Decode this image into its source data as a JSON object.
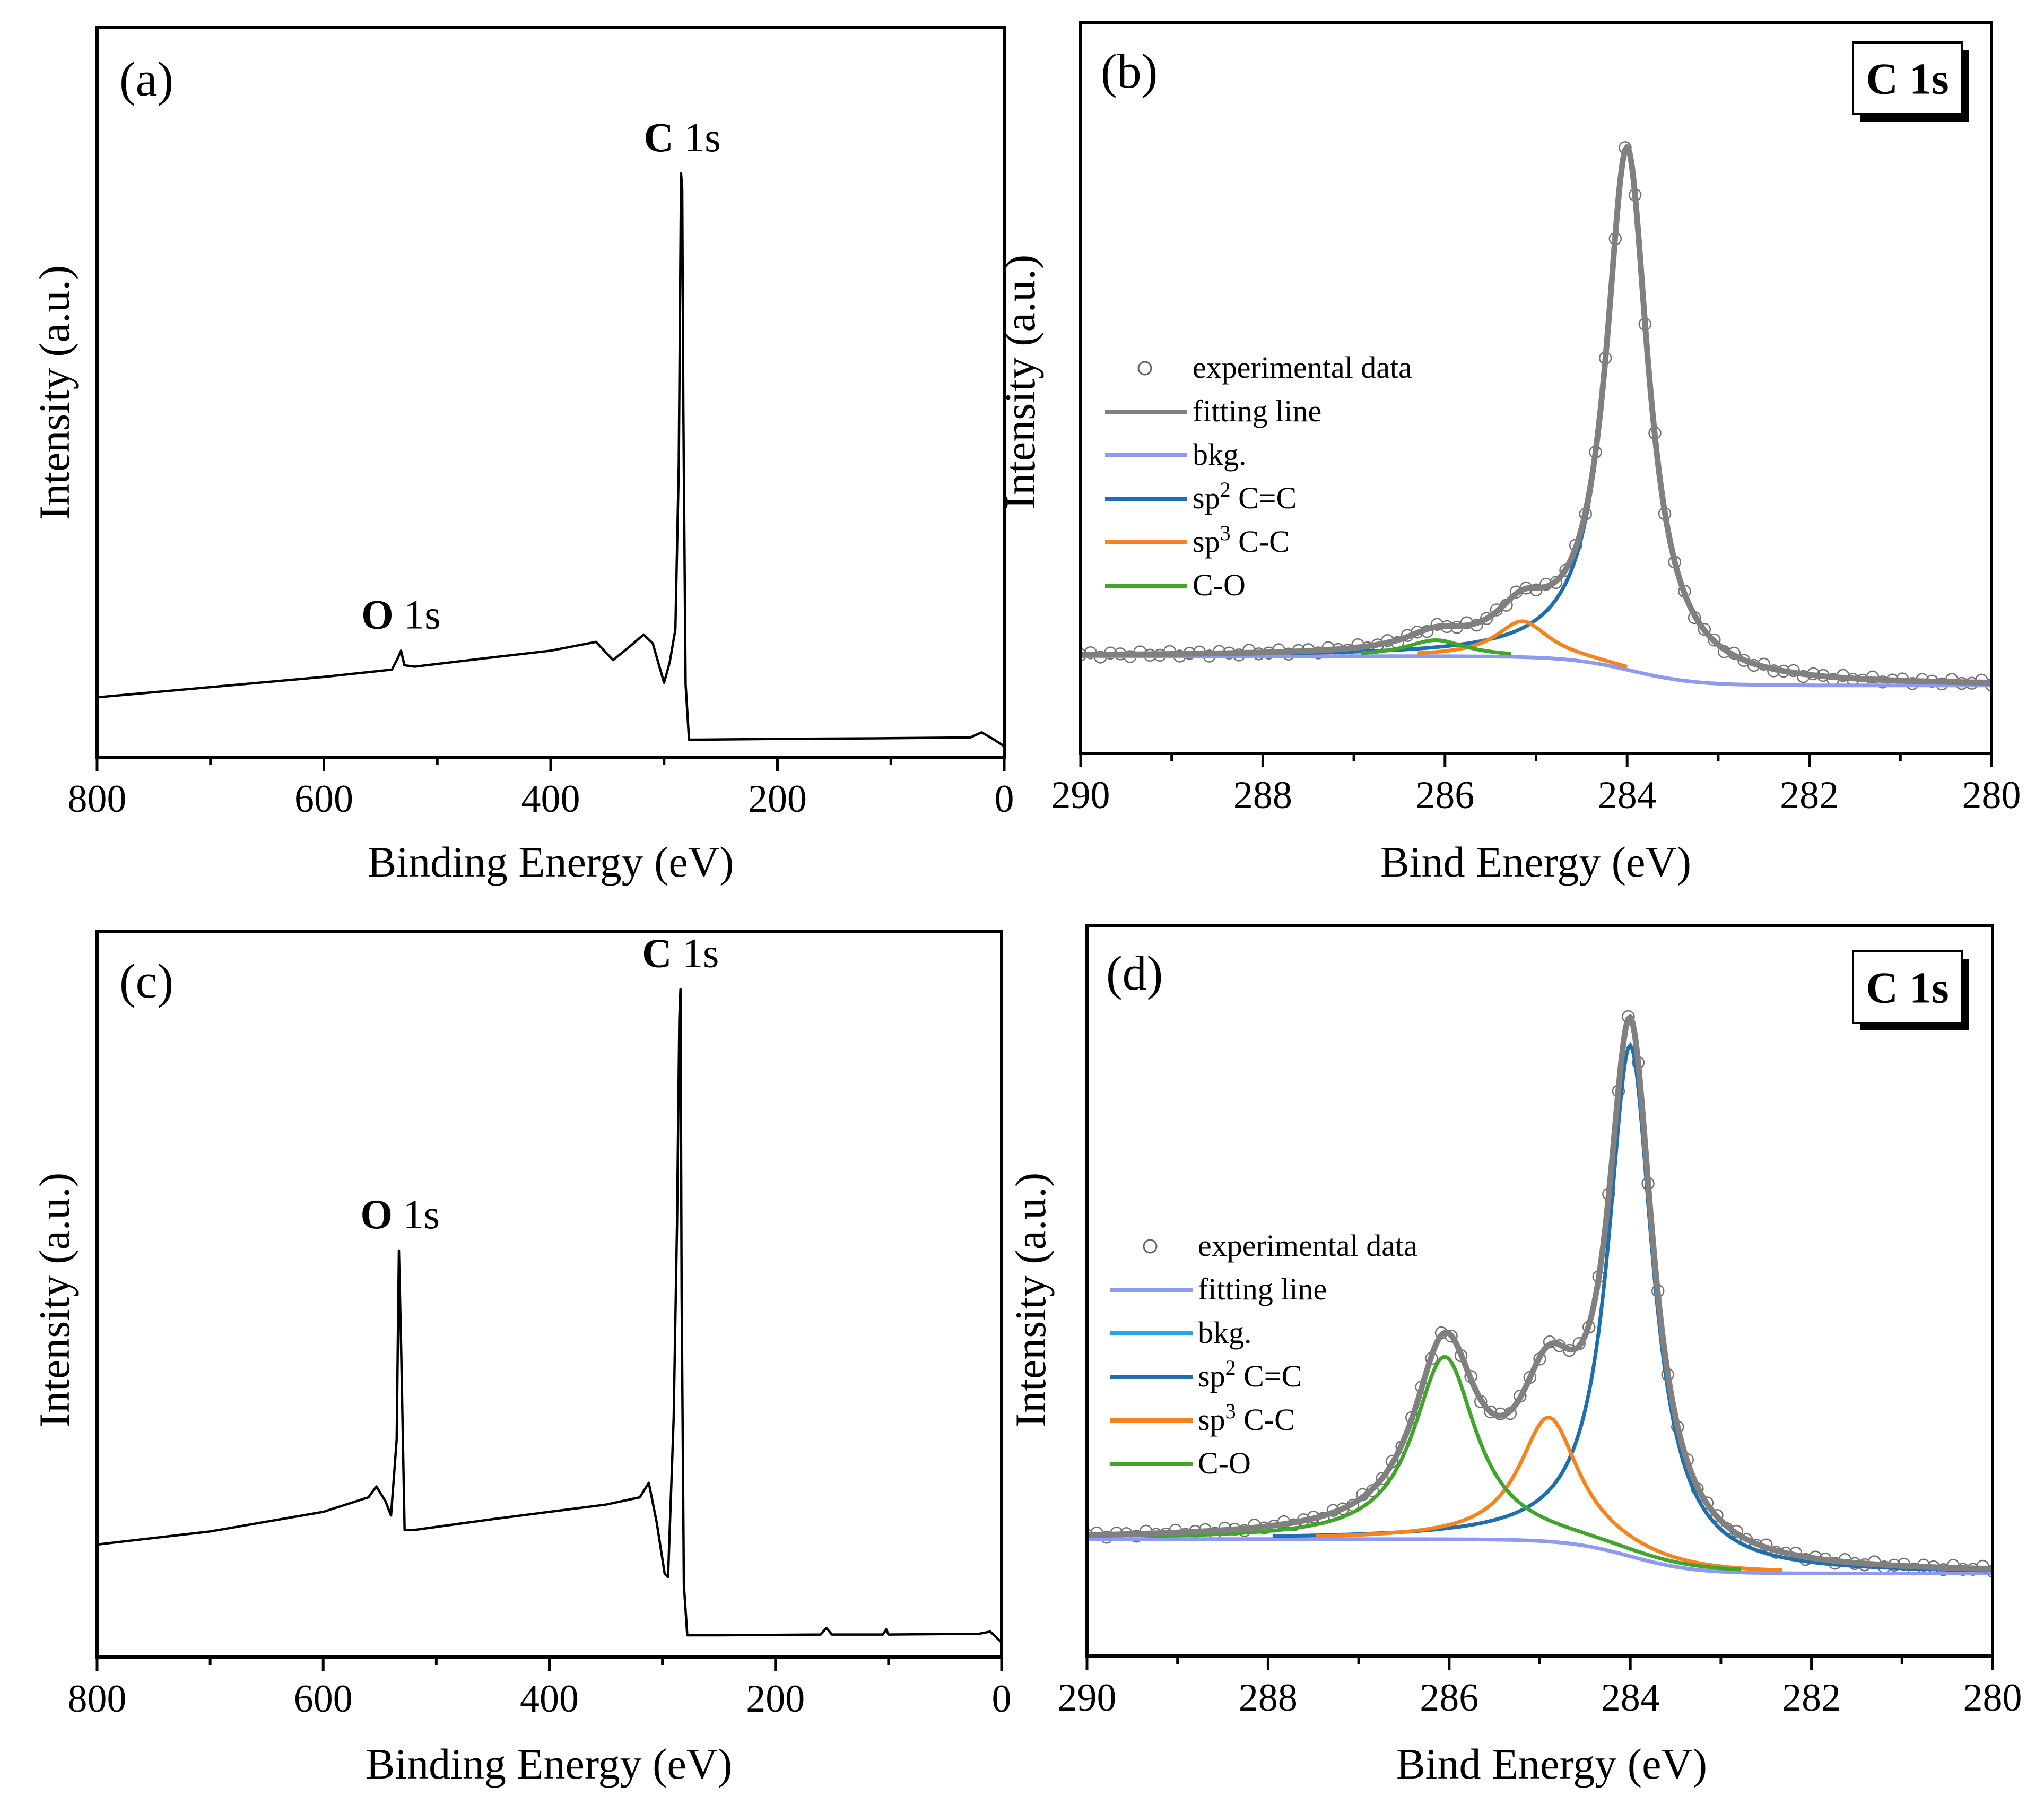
{
  "figure": {
    "panels": [
      "(a)",
      "(b)",
      "(c)",
      "(d)"
    ]
  },
  "chart_data": [
    {
      "id": "a",
      "type": "line",
      "panel_label": "(a)",
      "xlabel": "Binding Energy (eV)",
      "ylabel": "Intensity (a.u.)",
      "xlim": [
        800,
        0
      ],
      "ylim": [
        0,
        100
      ],
      "x_ticks": [
        "800",
        "600",
        "400",
        "200",
        "0"
      ],
      "annotations": [
        {
          "bold": "O",
          "rest": " 1s",
          "x": 532
        },
        {
          "bold": "C",
          "rest": " 1s",
          "x": 284
        }
      ],
      "series": [
        {
          "name": "survey",
          "color": "#000000",
          "x": [
            800,
            700,
            600,
            540,
            535,
            532,
            529,
            520,
            450,
            400,
            360,
            345,
            330,
            318,
            310,
            300,
            295,
            290,
            287,
            285,
            284,
            283,
            281,
            278,
            270,
            200,
            100,
            30,
            20,
            10,
            0
          ],
          "y": [
            8.2,
            9.6,
            11.0,
            12.0,
            13.5,
            14.6,
            12.6,
            12.4,
            13.7,
            14.6,
            15.8,
            13.3,
            15.2,
            16.8,
            15.6,
            10.2,
            13.0,
            17.5,
            40.0,
            80.0,
            78.0,
            48.0,
            10.0,
            2.4,
            2.4,
            2.5,
            2.6,
            2.7,
            3.4,
            2.5,
            1.5
          ]
        }
      ]
    },
    {
      "id": "b",
      "type": "line",
      "panel_label": "(b)",
      "badge": "C 1s",
      "xlabel": "Bind Energy (eV)",
      "ylabel": "Intensity (a.u.)",
      "xlim": [
        290,
        280
      ],
      "ylim": [
        0,
        100
      ],
      "x_ticks": [
        "290",
        "288",
        "286",
        "284",
        "282",
        "280"
      ],
      "legend": [
        {
          "label": "experimental data",
          "kind": "marker",
          "color": "#606060"
        },
        {
          "label": "fitting line",
          "color": "#808080"
        },
        {
          "label": "bkg.",
          "color": "#8c9af0"
        },
        {
          "label_main": "sp",
          "label_sup": "2",
          "label_rest": " C=C",
          "label": "sp2 C=C",
          "color": "#1f6fb0"
        },
        {
          "label_main": "sp",
          "label_sup": "3",
          "label_rest": " C-C",
          "label": "sp3 C-C",
          "color": "#f5841f"
        },
        {
          "label": "C-O",
          "color": "#3fa62a"
        }
      ],
      "peaks": [
        {
          "name": "sp2 C=C",
          "center": 284.0,
          "height": 71,
          "width": 0.28
        },
        {
          "name": "sp3 C-C",
          "center": 285.15,
          "height": 4.9,
          "width": 0.35
        },
        {
          "name": "C-O",
          "center": 286.1,
          "height": 2.2,
          "width": 0.4
        }
      ],
      "background": {
        "left": 13.3,
        "right": 9.3,
        "step_center": 283.95,
        "step_width": 0.35
      }
    },
    {
      "id": "c",
      "type": "line",
      "panel_label": "(c)",
      "xlabel": "Binding Energy (eV)",
      "ylabel": "Intensity (a.u.)",
      "xlim": [
        800,
        0
      ],
      "ylim": [
        0,
        100
      ],
      "x_ticks": [
        "800",
        "600",
        "400",
        "200",
        "0"
      ],
      "annotations": [
        {
          "bold": "O",
          "rest": " 1s",
          "x": 532
        },
        {
          "bold": "C",
          "rest": " 1s",
          "x": 284
        }
      ],
      "series": [
        {
          "name": "survey",
          "color": "#000000",
          "x": [
            800,
            700,
            600,
            560,
            553,
            545,
            540,
            535,
            533,
            531,
            528,
            520,
            450,
            400,
            350,
            320,
            312,
            305,
            298,
            295,
            290,
            287,
            285,
            284,
            283,
            281,
            278,
            250,
            160,
            155,
            150,
            105,
            102,
            100,
            20,
            10,
            0
          ],
          "y": [
            15.5,
            17.3,
            20.0,
            22.0,
            23.5,
            21.5,
            19.5,
            30.0,
            56.0,
            42.0,
            17.5,
            17.5,
            19.0,
            20.0,
            21.0,
            22.0,
            24.0,
            18.5,
            11.5,
            11.0,
            33.0,
            60.0,
            88.0,
            92.0,
            50.0,
            10.0,
            3.0,
            3.0,
            3.1,
            4.0,
            3.1,
            3.1,
            3.8,
            3.1,
            3.2,
            3.5,
            2.0
          ]
        }
      ]
    },
    {
      "id": "d",
      "type": "line",
      "panel_label": "(d)",
      "badge": "C 1s",
      "xlabel": "Bind Energy (eV)",
      "ylabel": "Intensity (a.u.)",
      "xlim": [
        290,
        280
      ],
      "ylim": [
        0,
        100
      ],
      "x_ticks": [
        "290",
        "288",
        "286",
        "284",
        "282",
        "280"
      ],
      "legend": [
        {
          "label": "experimental data",
          "kind": "marker",
          "color": "#606060"
        },
        {
          "label": "fitting line",
          "color": "#8c9af0"
        },
        {
          "label": "bkg.",
          "color": "#22a7e8"
        },
        {
          "label_main": "sp",
          "label_sup": "2",
          "label_rest": " C=C",
          "label": "sp2 C=C",
          "color": "#1f6fb0"
        },
        {
          "label_main": "sp",
          "label_sup": "3",
          "label_rest": " C-C",
          "label": "sp3 C-C",
          "color": "#f5841f"
        },
        {
          "label": "C-O",
          "color": "#3fa62a"
        }
      ],
      "peaks": [
        {
          "name": "sp2 C=C",
          "center": 284.0,
          "height": 70,
          "width": 0.3
        },
        {
          "name": "sp3 C-C",
          "center": 284.9,
          "height": 17,
          "width": 0.4
        },
        {
          "name": "C-O",
          "center": 286.05,
          "height": 25,
          "width": 0.42
        }
      ],
      "background": {
        "left": 16.0,
        "right": 11.3,
        "step_center": 284.0,
        "step_width": 0.35
      }
    }
  ]
}
